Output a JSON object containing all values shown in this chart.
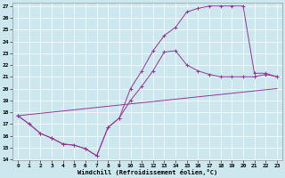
{
  "bg_color": "#cce8ee",
  "line_color": "#993399",
  "xlabel": "Windchill (Refroidissement éolien,°C)",
  "xlim": [
    0,
    23
  ],
  "ylim": [
    14,
    27
  ],
  "xticks": [
    0,
    1,
    2,
    3,
    4,
    5,
    6,
    7,
    8,
    9,
    10,
    11,
    12,
    13,
    14,
    15,
    16,
    17,
    18,
    19,
    20,
    21,
    22,
    23
  ],
  "yticks": [
    14,
    15,
    16,
    17,
    18,
    19,
    20,
    21,
    22,
    23,
    24,
    25,
    26,
    27
  ],
  "curve1_x": [
    0,
    1,
    2,
    3,
    4,
    5,
    6,
    7,
    8,
    9,
    10,
    11,
    12,
    13,
    14,
    15,
    16,
    17,
    18,
    19,
    20,
    21,
    22,
    23
  ],
  "curve1_y": [
    17.7,
    17.0,
    16.2,
    15.8,
    15.3,
    15.2,
    14.9,
    14.3,
    16.7,
    17.5,
    19.0,
    20.2,
    21.5,
    23.1,
    23.2,
    22.0,
    21.5,
    21.2,
    21.0,
    21.0,
    21.0,
    21.0,
    21.2,
    21.0
  ],
  "curve2_x": [
    0,
    1,
    2,
    3,
    4,
    5,
    6,
    7,
    8,
    9,
    10,
    11,
    12,
    13,
    14,
    15,
    16,
    17,
    18,
    19,
    20,
    21,
    22,
    23
  ],
  "curve2_y": [
    17.7,
    17.0,
    16.2,
    15.8,
    15.3,
    15.2,
    14.9,
    14.3,
    16.7,
    17.5,
    20.0,
    21.5,
    23.2,
    24.5,
    25.2,
    26.5,
    26.8,
    27.0,
    27.0,
    27.0,
    27.0,
    21.3,
    21.3,
    21.0
  ],
  "curve3_x": [
    0,
    23
  ],
  "curve3_y": [
    17.7,
    20.0
  ]
}
